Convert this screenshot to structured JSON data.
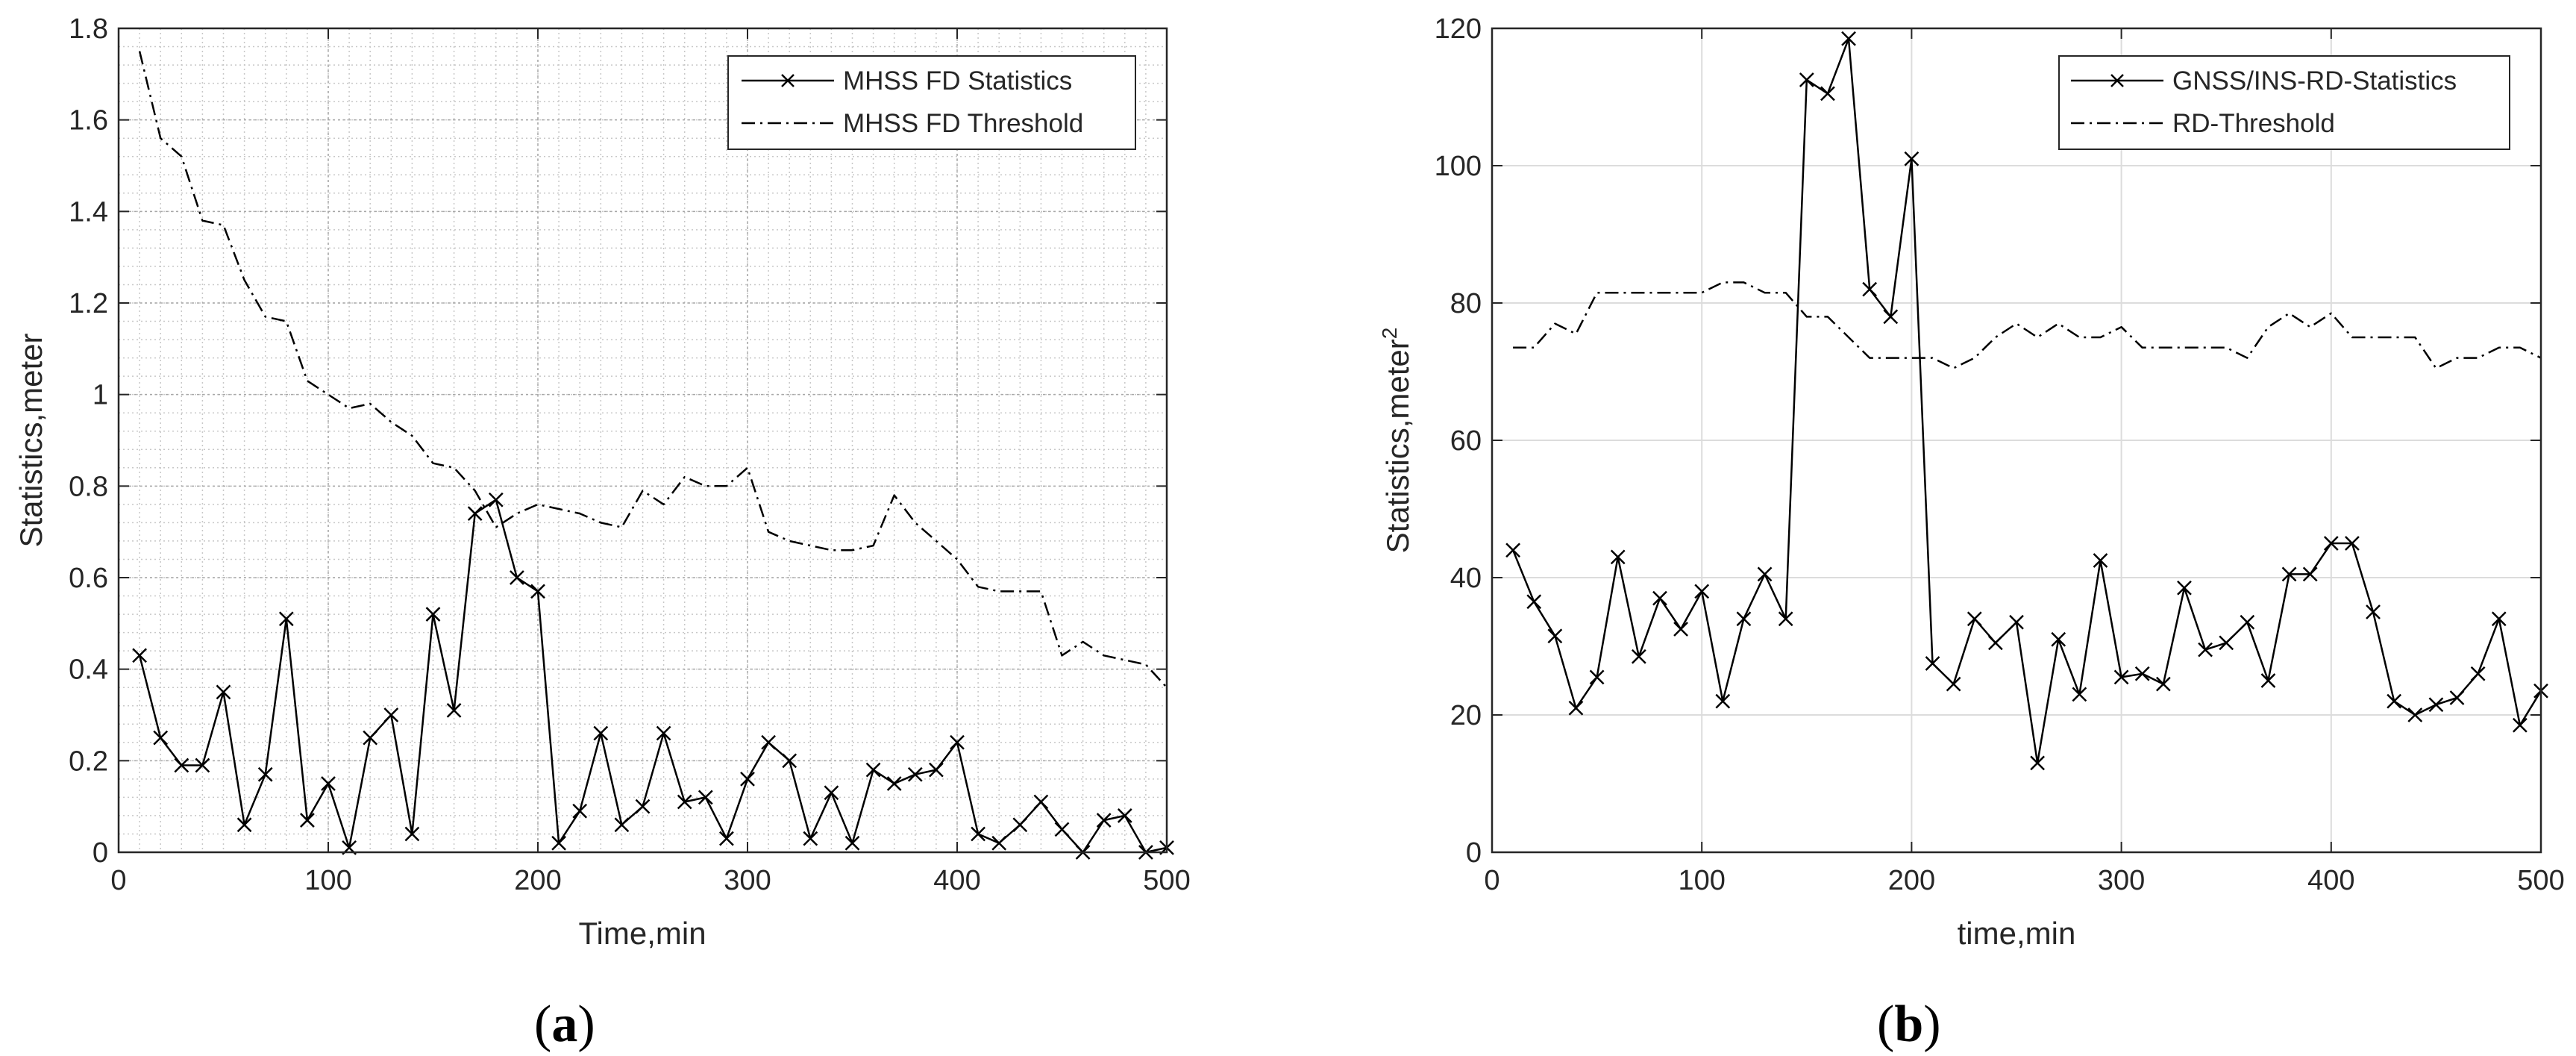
{
  "chart_data": [
    {
      "type": "line",
      "panel_label": "a",
      "xlabel": "Time,min",
      "ylabel": "Statistics,meter",
      "xlim": [
        0,
        500
      ],
      "ylim": [
        0,
        1.8
      ],
      "xticks": [
        "0",
        "100",
        "200",
        "300",
        "400",
        "500"
      ],
      "yticks": [
        "0",
        "0.2",
        "0.4",
        "0.6",
        "0.8",
        "1",
        "1.2",
        "1.4",
        "1.6",
        "1.8"
      ],
      "grid": "on (dense dotted minor grid)",
      "legend_position": "top-right",
      "series": [
        {
          "name": "MHSS FD Statistics",
          "style": "solid line with x markers",
          "x": [
            10,
            20,
            30,
            40,
            50,
            60,
            70,
            80,
            90,
            100,
            110,
            120,
            130,
            140,
            150,
            160,
            170,
            180,
            190,
            200,
            210,
            220,
            230,
            240,
            250,
            260,
            270,
            280,
            290,
            300,
            310,
            320,
            330,
            340,
            350,
            360,
            370,
            380,
            390,
            400,
            410,
            420,
            430,
            440,
            450,
            460,
            470,
            480,
            490,
            500
          ],
          "y": [
            0.43,
            0.25,
            0.19,
            0.19,
            0.35,
            0.06,
            0.17,
            0.51,
            0.07,
            0.15,
            0.01,
            0.25,
            0.3,
            0.04,
            0.52,
            0.31,
            0.74,
            0.77,
            0.6,
            0.57,
            0.02,
            0.09,
            0.26,
            0.06,
            0.1,
            0.26,
            0.11,
            0.12,
            0.03,
            0.16,
            0.24,
            0.2,
            0.03,
            0.13,
            0.02,
            0.18,
            0.15,
            0.17,
            0.18,
            0.24,
            0.04,
            0.02,
            0.06,
            0.11,
            0.05,
            0.0,
            0.07,
            0.08,
            0.0,
            0.01
          ]
        },
        {
          "name": "MHSS FD Threshold",
          "style": "dash-dot line",
          "x": [
            10,
            20,
            30,
            40,
            50,
            60,
            70,
            80,
            90,
            100,
            110,
            120,
            130,
            140,
            150,
            160,
            170,
            180,
            190,
            200,
            210,
            220,
            230,
            240,
            250,
            260,
            270,
            280,
            290,
            300,
            310,
            320,
            330,
            340,
            350,
            360,
            370,
            380,
            390,
            400,
            410,
            420,
            430,
            440,
            450,
            460,
            470,
            480,
            490,
            500
          ],
          "y": [
            1.75,
            1.56,
            1.52,
            1.38,
            1.37,
            1.25,
            1.17,
            1.16,
            1.03,
            1.0,
            0.97,
            0.98,
            0.94,
            0.91,
            0.85,
            0.84,
            0.79,
            0.71,
            0.74,
            0.76,
            0.75,
            0.74,
            0.72,
            0.71,
            0.79,
            0.76,
            0.82,
            0.8,
            0.8,
            0.84,
            0.7,
            0.68,
            0.67,
            0.66,
            0.66,
            0.67,
            0.78,
            0.72,
            0.68,
            0.64,
            0.58,
            0.57,
            0.57,
            0.57,
            0.43,
            0.46,
            0.43,
            0.42,
            0.41,
            0.36
          ]
        }
      ]
    },
    {
      "type": "line",
      "panel_label": "b",
      "xlabel": "time,min",
      "ylabel": "Statistics,meter",
      "ylabel_superscript": "2",
      "xlim": [
        0,
        500
      ],
      "ylim": [
        0,
        120
      ],
      "xticks": [
        "0",
        "100",
        "200",
        "300",
        "400",
        "500"
      ],
      "yticks": [
        "0",
        "20",
        "40",
        "60",
        "80",
        "100",
        "120"
      ],
      "grid": "on (major grid)",
      "legend_position": "top-right",
      "series": [
        {
          "name": "GNSS/INS-RD-Statistics",
          "style": "solid line with x markers",
          "x": [
            10,
            20,
            30,
            40,
            50,
            60,
            70,
            80,
            90,
            100,
            110,
            120,
            130,
            140,
            150,
            160,
            170,
            180,
            190,
            200,
            210,
            220,
            230,
            240,
            250,
            260,
            270,
            280,
            290,
            300,
            310,
            320,
            330,
            340,
            350,
            360,
            370,
            380,
            390,
            400,
            410,
            420,
            430,
            440,
            450,
            460,
            470,
            480,
            490,
            500
          ],
          "y": [
            44,
            36.5,
            31.5,
            21,
            25.5,
            43,
            28.5,
            37,
            32.5,
            38,
            22,
            34,
            40.5,
            34,
            112.5,
            110.5,
            118.5,
            82,
            78,
            101,
            27.5,
            24.5,
            34,
            30.5,
            33.5,
            13,
            31,
            23,
            42.5,
            25.5,
            26,
            24.5,
            38.5,
            29.5,
            30.5,
            33.5,
            25,
            40.5,
            40.5,
            45,
            45,
            35,
            22,
            20,
            21.5,
            22.5,
            26,
            34,
            18.5,
            23.5
          ]
        },
        {
          "name": "RD-Threshold",
          "style": "dash-dot line",
          "x": [
            10,
            20,
            30,
            40,
            50,
            60,
            70,
            80,
            90,
            100,
            110,
            120,
            130,
            140,
            150,
            160,
            170,
            180,
            190,
            200,
            210,
            220,
            230,
            240,
            250,
            260,
            270,
            280,
            290,
            300,
            310,
            320,
            330,
            340,
            350,
            360,
            370,
            380,
            390,
            400,
            410,
            420,
            430,
            440,
            450,
            460,
            470,
            480,
            490,
            500
          ],
          "y": [
            73.5,
            73.5,
            77,
            75.5,
            81.5,
            81.5,
            81.5,
            81.5,
            81.5,
            81.5,
            83,
            83,
            81.5,
            81.5,
            78,
            78,
            75,
            72,
            72,
            72,
            72,
            70.5,
            72,
            75,
            77,
            75,
            77,
            75,
            75,
            76.5,
            73.5,
            73.5,
            73.5,
            73.5,
            73.5,
            72,
            76.5,
            78.5,
            76.5,
            78.5,
            75,
            75,
            75,
            75,
            70.5,
            72,
            72,
            73.5,
            73.5,
            72
          ]
        }
      ]
    }
  ]
}
